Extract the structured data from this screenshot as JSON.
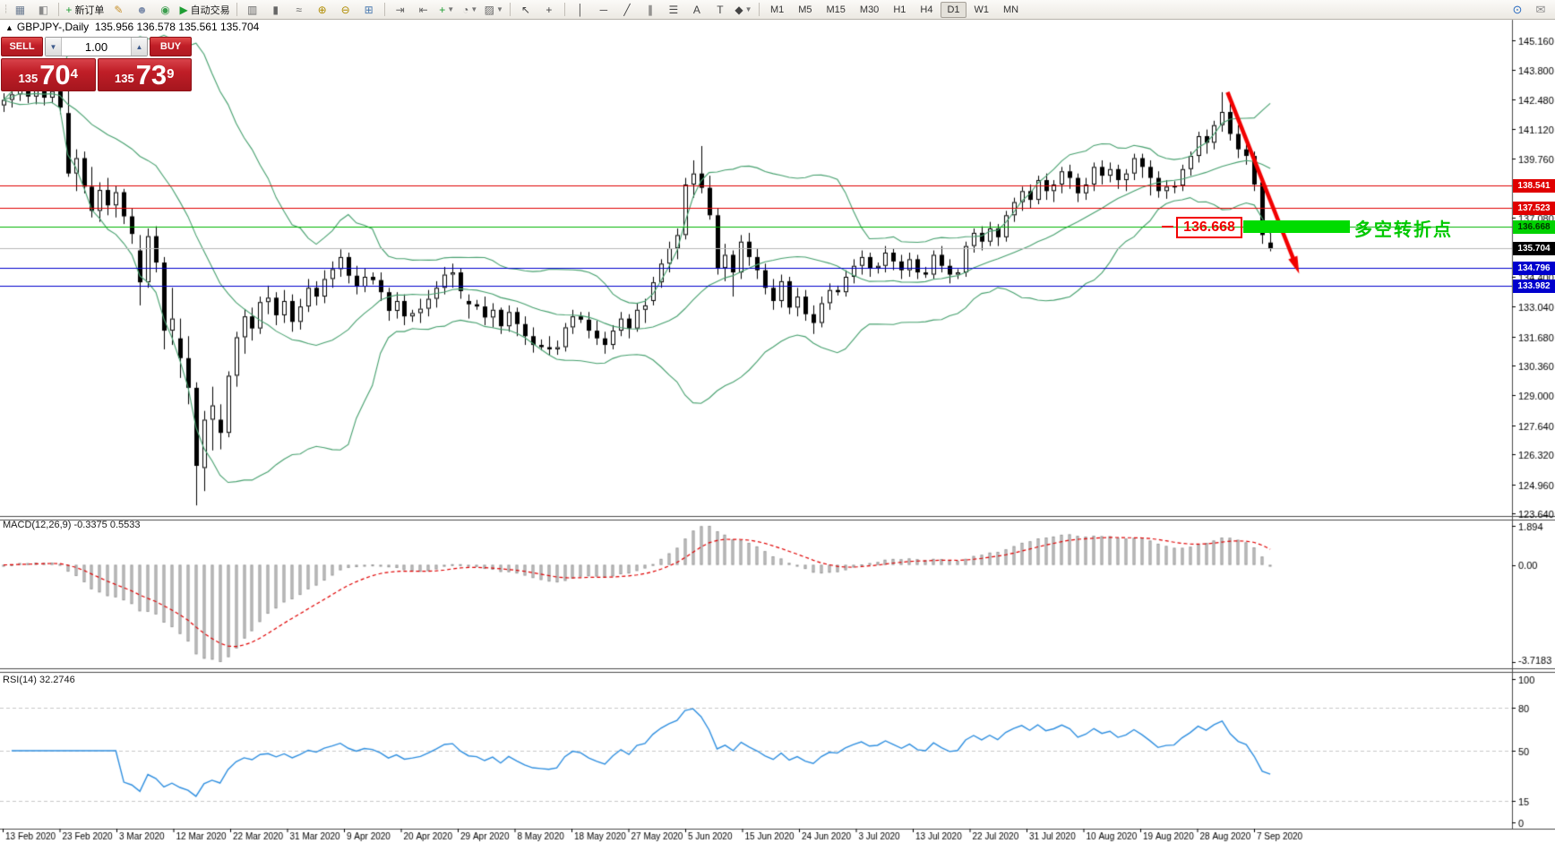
{
  "toolbar": {
    "items": [
      {
        "name": "charts-window-icon",
        "glyph": "▦",
        "color": "#6a7a90"
      },
      {
        "name": "strategy-tester-icon",
        "glyph": "◧",
        "color": "#8a8a8a"
      },
      {
        "name": "sep"
      },
      {
        "name": "new-order-icon",
        "glyph": "+",
        "color": "#1f9e34",
        "label": "新订单"
      },
      {
        "name": "crayon-icon",
        "glyph": "✎",
        "color": "#c8922e"
      },
      {
        "name": "profile-icon",
        "glyph": "☻",
        "color": "#7d8dab"
      },
      {
        "name": "signal-icon",
        "glyph": "◉",
        "color": "#3d9e4f"
      },
      {
        "name": "autotrading-icon",
        "glyph": "▶",
        "color": "#1f9e34",
        "label": "自动交易"
      },
      {
        "name": "sep"
      },
      {
        "name": "bar-chart-icon",
        "glyph": "▥",
        "color": "#666"
      },
      {
        "name": "candlestick-chart-icon",
        "glyph": "▮",
        "color": "#666"
      },
      {
        "name": "line-chart-icon",
        "glyph": "≈",
        "color": "#666"
      },
      {
        "name": "zoom-in-icon",
        "glyph": "⊕",
        "color": "#b08c00"
      },
      {
        "name": "zoom-out-icon",
        "glyph": "⊖",
        "color": "#b08c00"
      },
      {
        "name": "tile-windows-icon",
        "glyph": "⊞",
        "color": "#4a7ab0"
      },
      {
        "name": "sep"
      },
      {
        "name": "auto-scroll-icon",
        "glyph": "⇥",
        "color": "#666"
      },
      {
        "name": "chart-shift-icon",
        "glyph": "⇤",
        "color": "#666"
      },
      {
        "name": "indicators-icon",
        "glyph": "+",
        "color": "#1f9e34",
        "dropdown": true
      },
      {
        "name": "periods-icon",
        "glyph": "◔",
        "color": "#666",
        "dropdown": true
      },
      {
        "name": "templates-icon",
        "glyph": "▨",
        "color": "#666",
        "dropdown": true
      },
      {
        "name": "sep"
      },
      {
        "name": "cursor-icon",
        "glyph": "↖",
        "color": "#444"
      },
      {
        "name": "crosshair-icon",
        "glyph": "+",
        "color": "#444"
      },
      {
        "name": "sep"
      },
      {
        "name": "vertical-line-icon",
        "glyph": "│",
        "color": "#444"
      },
      {
        "name": "horizontal-line-icon",
        "glyph": "─",
        "color": "#444"
      },
      {
        "name": "trendline-icon",
        "glyph": "╱",
        "color": "#444"
      },
      {
        "name": "channel-icon",
        "glyph": "∥",
        "color": "#444"
      },
      {
        "name": "fibonacci-icon",
        "glyph": "☰",
        "color": "#444"
      },
      {
        "name": "text-icon",
        "glyph": "A",
        "color": "#444"
      },
      {
        "name": "label-icon",
        "glyph": "T",
        "color": "#444"
      },
      {
        "name": "arrows-icon",
        "glyph": "◆",
        "color": "#444",
        "dropdown": true
      },
      {
        "name": "sep"
      }
    ],
    "timeframes": [
      "M1",
      "M5",
      "M15",
      "M30",
      "H1",
      "H4",
      "D1",
      "W1",
      "MN"
    ],
    "active_timeframe": "D1",
    "right_icons": [
      {
        "name": "search-icon",
        "glyph": "⊙",
        "color": "#2a6bc0"
      },
      {
        "name": "chat-icon",
        "glyph": "✉",
        "color": "#8a8a8a"
      }
    ]
  },
  "chart_header": {
    "symbol_marker": "▲",
    "symbol": "GBPJPY-,Daily",
    "ohlc": "135.956 136.578 135.561 135.704"
  },
  "trade_panel": {
    "sell_label": "SELL",
    "buy_label": "BUY",
    "volume": "1.00",
    "spinner_up": "▲",
    "spinner_down": "▼",
    "sell_price": {
      "prefix": "135",
      "big": "70",
      "sup": "4"
    },
    "buy_price": {
      "prefix": "135",
      "big": "73",
      "sup": "9"
    }
  },
  "indicator_labels": {
    "macd": "MACD(12,26,9) -0.3375 0.5533",
    "rsi": "RSI(14) 32.2746"
  },
  "annotations": {
    "price_callout": "136.668",
    "note_text": "多空转折点",
    "note_color": "#00c800",
    "callout_color": "#f20000",
    "signal_bar_color": "#00dc00"
  },
  "chart_data": {
    "type": "candlestick",
    "symbol": "GBPJPY",
    "timeframe": "Daily",
    "last_ohlc": {
      "open": 135.956,
      "high": 136.578,
      "low": 135.561,
      "close": 135.704
    },
    "price_axis": {
      "ticks": [
        "145.160",
        "143.800",
        "142.480",
        "141.120",
        "139.760",
        "137.080",
        "134.400",
        "133.040",
        "131.680",
        "130.360",
        "129.000",
        "127.640",
        "126.320",
        "124.960",
        "123.640"
      ]
    },
    "hlines": [
      {
        "price": 138.541,
        "label": "138.541",
        "color": "#e00000",
        "tag_bg": "#e00000",
        "tag_fg": "#ffffff"
      },
      {
        "price": 137.523,
        "label": "137.523",
        "color": "#e00000",
        "tag_bg": "#e00000",
        "tag_fg": "#ffffff"
      },
      {
        "price": 136.668,
        "label": "136.668",
        "color": "#00b400",
        "tag_bg": "#00d200",
        "tag_fg": "#003300"
      },
      {
        "price": 135.704,
        "label": "135.704",
        "color": "#b8b8b8",
        "tag_bg": "#000000",
        "tag_fg": "#ffffff"
      },
      {
        "price": 134.796,
        "label": "134.796",
        "color": "#0000cd",
        "tag_bg": "#0000cd",
        "tag_fg": "#ffffff"
      },
      {
        "price": 133.982,
        "label": "133.982",
        "color": "#0000cd",
        "tag_bg": "#0000cd",
        "tag_fg": "#ffffff"
      }
    ],
    "dates": [
      "13 Feb 2020",
      "23 Feb 2020",
      "3 Mar 2020",
      "12 Mar 2020",
      "22 Mar 2020",
      "31 Mar 2020",
      "9 Apr 2020",
      "20 Apr 2020",
      "29 Apr 2020",
      "8 May 2020",
      "18 May 2020",
      "27 May 2020",
      "5 Jun 2020",
      "15 Jun 2020",
      "24 Jun 2020",
      "3 Jul 2020",
      "13 Jul 2020",
      "22 Jul 2020",
      "31 Jul 2020",
      "10 Aug 2020",
      "19 Aug 2020",
      "28 Aug 2020",
      "7 Sep 2020"
    ],
    "bollinger": {
      "period": 20,
      "deviation": 2,
      "color": "#46a06e"
    },
    "macd": {
      "params": "12,26,9",
      "value": -0.3375,
      "signal": 0.5533,
      "axis": [
        "1.894",
        "0.00",
        "-3.7183"
      ],
      "hist_color": "#d2d2d2",
      "hist_border": "#9a9a9a",
      "signal_color": "#e00000"
    },
    "rsi": {
      "params": "14",
      "value": 32.2746,
      "levels": [
        80,
        50,
        15
      ],
      "axis": [
        "100",
        "80",
        "50",
        "15",
        "0"
      ],
      "line_color": "#2f8fe0"
    },
    "trend_arrow": {
      "from_price": 142.8,
      "to_price": 135.0,
      "color": "#f20000"
    },
    "candles": [
      [
        142.2,
        142.75,
        141.9,
        142.45
      ],
      [
        142.45,
        143.0,
        142.1,
        142.7
      ],
      [
        142.7,
        143.3,
        142.4,
        143.05
      ],
      [
        143.05,
        143.25,
        142.3,
        142.6
      ],
      [
        142.6,
        143.15,
        142.25,
        142.9
      ],
      [
        142.9,
        143.2,
        142.2,
        142.55
      ],
      [
        142.55,
        143.4,
        142.3,
        142.85
      ],
      [
        142.85,
        143.1,
        141.8,
        142.1
      ],
      [
        141.85,
        143.25,
        138.95,
        139.1
      ],
      [
        139.1,
        140.2,
        138.3,
        139.8
      ],
      [
        139.8,
        140.1,
        138.2,
        138.5
      ],
      [
        138.5,
        139.4,
        137.1,
        137.4
      ],
      [
        137.4,
        138.7,
        136.9,
        138.35
      ],
      [
        138.35,
        138.9,
        137.2,
        137.65
      ],
      [
        137.65,
        138.55,
        137.1,
        138.25
      ],
      [
        138.25,
        138.4,
        136.8,
        137.15
      ],
      [
        137.15,
        137.5,
        135.9,
        136.35
      ],
      [
        135.6,
        136.3,
        133.1,
        134.15
      ],
      [
        134.15,
        136.6,
        133.9,
        136.25
      ],
      [
        136.25,
        136.7,
        134.6,
        135.05
      ],
      [
        135.05,
        135.3,
        131.1,
        131.95
      ],
      [
        131.95,
        133.9,
        131.3,
        132.5
      ],
      [
        131.6,
        132.5,
        129.8,
        130.7
      ],
      [
        130.7,
        131.7,
        128.6,
        129.35
      ],
      [
        129.35,
        129.6,
        124.0,
        125.8
      ],
      [
        125.7,
        128.3,
        124.65,
        127.9
      ],
      [
        127.9,
        129.4,
        126.5,
        128.55
      ],
      [
        127.9,
        128.6,
        126.55,
        127.3
      ],
      [
        127.3,
        130.1,
        127.1,
        129.9
      ],
      [
        129.9,
        131.9,
        129.4,
        131.65
      ],
      [
        131.65,
        132.9,
        130.9,
        132.6
      ],
      [
        132.6,
        133.0,
        131.5,
        132.05
      ],
      [
        132.05,
        133.5,
        131.8,
        133.25
      ],
      [
        133.25,
        134.0,
        132.7,
        133.45
      ],
      [
        133.45,
        133.7,
        132.2,
        132.65
      ],
      [
        132.65,
        133.8,
        132.3,
        133.3
      ],
      [
        133.3,
        133.6,
        131.9,
        132.35
      ],
      [
        132.35,
        133.4,
        132.0,
        133.05
      ],
      [
        133.05,
        134.3,
        132.8,
        133.9
      ],
      [
        133.9,
        134.2,
        133.1,
        133.5
      ],
      [
        133.5,
        134.7,
        133.2,
        134.3
      ],
      [
        134.3,
        135.1,
        133.9,
        134.75
      ],
      [
        134.75,
        135.65,
        134.4,
        135.3
      ],
      [
        135.3,
        135.5,
        134.1,
        134.45
      ],
      [
        134.45,
        134.9,
        133.6,
        133.95
      ],
      [
        133.95,
        134.8,
        133.7,
        134.4
      ],
      [
        134.4,
        134.6,
        134.05,
        134.25
      ],
      [
        134.25,
        134.6,
        133.3,
        133.7
      ],
      [
        133.7,
        133.9,
        132.4,
        132.85
      ],
      [
        132.85,
        133.7,
        132.5,
        133.3
      ],
      [
        133.3,
        133.6,
        132.2,
        132.6
      ],
      [
        132.6,
        132.9,
        132.35,
        132.75
      ],
      [
        132.75,
        133.4,
        132.3,
        132.95
      ],
      [
        132.95,
        133.8,
        132.6,
        133.4
      ],
      [
        133.4,
        134.2,
        133.0,
        133.9
      ],
      [
        133.9,
        134.85,
        133.6,
        134.5
      ],
      [
        134.5,
        135.0,
        133.9,
        134.6
      ],
      [
        134.6,
        134.8,
        133.4,
        133.75
      ],
      [
        133.3,
        133.6,
        132.5,
        133.15
      ],
      [
        133.15,
        133.35,
        132.9,
        133.05
      ],
      [
        133.05,
        133.5,
        132.2,
        132.55
      ],
      [
        132.55,
        133.2,
        132.1,
        132.9
      ],
      [
        132.9,
        133.0,
        131.8,
        132.15
      ],
      [
        132.15,
        133.1,
        131.9,
        132.8
      ],
      [
        132.8,
        133.0,
        131.7,
        132.25
      ],
      [
        132.25,
        132.6,
        131.3,
        131.7
      ],
      [
        131.7,
        132.1,
        130.95,
        131.3
      ],
      [
        131.3,
        131.55,
        131.05,
        131.2
      ],
      [
        131.2,
        131.7,
        130.85,
        131.1
      ],
      [
        131.1,
        131.5,
        130.85,
        131.2
      ],
      [
        131.2,
        132.3,
        131.0,
        132.1
      ],
      [
        132.1,
        132.9,
        131.8,
        132.6
      ],
      [
        132.6,
        132.8,
        132.3,
        132.45
      ],
      [
        132.45,
        132.8,
        131.6,
        131.95
      ],
      [
        131.95,
        132.4,
        131.3,
        131.6
      ],
      [
        131.6,
        131.9,
        130.9,
        131.3
      ],
      [
        131.3,
        132.2,
        131.1,
        131.95
      ],
      [
        131.95,
        132.8,
        131.7,
        132.5
      ],
      [
        132.5,
        132.7,
        131.6,
        132.05
      ],
      [
        132.05,
        133.2,
        131.9,
        132.9
      ],
      [
        132.9,
        133.4,
        132.3,
        133.1
      ],
      [
        133.3,
        134.4,
        133.1,
        134.15
      ],
      [
        134.15,
        135.2,
        133.9,
        135.0
      ],
      [
        135.0,
        136.0,
        134.6,
        135.7
      ],
      [
        135.7,
        136.6,
        135.2,
        136.3
      ],
      [
        136.3,
        138.9,
        136.1,
        138.6
      ],
      [
        138.6,
        139.7,
        138.0,
        139.1
      ],
      [
        139.1,
        140.35,
        138.2,
        138.45
      ],
      [
        138.45,
        139.0,
        137.0,
        137.2
      ],
      [
        137.2,
        137.5,
        134.5,
        134.8
      ],
      [
        134.8,
        135.9,
        134.2,
        135.4
      ],
      [
        135.4,
        135.6,
        133.5,
        134.6
      ],
      [
        134.6,
        136.3,
        134.3,
        136.0
      ],
      [
        136.0,
        136.4,
        134.9,
        135.3
      ],
      [
        135.3,
        135.7,
        134.3,
        134.7
      ],
      [
        134.7,
        135.0,
        133.6,
        133.9
      ],
      [
        133.9,
        134.3,
        132.9,
        133.3
      ],
      [
        133.3,
        134.5,
        133.0,
        134.2
      ],
      [
        134.2,
        134.4,
        132.7,
        133.0
      ],
      [
        133.0,
        133.9,
        132.6,
        133.5
      ],
      [
        133.5,
        133.8,
        132.4,
        132.7
      ],
      [
        132.7,
        133.1,
        131.8,
        132.3
      ],
      [
        132.3,
        133.5,
        132.1,
        133.2
      ],
      [
        133.2,
        134.1,
        132.9,
        133.8
      ],
      [
        133.8,
        134.0,
        133.55,
        133.7
      ],
      [
        133.7,
        134.7,
        133.5,
        134.4
      ],
      [
        134.4,
        135.2,
        134.1,
        134.9
      ],
      [
        134.9,
        135.6,
        134.5,
        135.3
      ],
      [
        135.3,
        135.5,
        134.4,
        134.8
      ],
      [
        134.8,
        135.05,
        134.55,
        134.9
      ],
      [
        134.9,
        135.8,
        134.6,
        135.5
      ],
      [
        135.5,
        135.7,
        134.7,
        135.1
      ],
      [
        135.1,
        135.4,
        134.3,
        134.7
      ],
      [
        134.7,
        135.5,
        134.4,
        135.2
      ],
      [
        135.2,
        135.4,
        134.3,
        134.6
      ],
      [
        134.6,
        134.85,
        134.35,
        134.5
      ],
      [
        134.5,
        135.6,
        134.3,
        135.4
      ],
      [
        135.4,
        135.8,
        134.6,
        134.9
      ],
      [
        134.9,
        135.2,
        134.1,
        134.5
      ],
      [
        134.5,
        134.75,
        134.3,
        134.6
      ],
      [
        134.6,
        136.0,
        134.4,
        135.8
      ],
      [
        135.8,
        136.6,
        135.5,
        136.4
      ],
      [
        136.4,
        136.7,
        135.6,
        136.0
      ],
      [
        136.0,
        136.9,
        135.8,
        136.6
      ],
      [
        136.6,
        136.8,
        135.8,
        136.2
      ],
      [
        136.2,
        137.4,
        136.0,
        137.2
      ],
      [
        137.2,
        138.0,
        136.9,
        137.8
      ],
      [
        137.8,
        138.5,
        137.4,
        138.3
      ],
      [
        138.3,
        138.6,
        137.5,
        137.9
      ],
      [
        137.9,
        139.0,
        137.7,
        138.8
      ],
      [
        138.8,
        139.1,
        137.9,
        138.3
      ],
      [
        138.3,
        138.8,
        137.8,
        138.6
      ],
      [
        138.6,
        139.4,
        138.2,
        139.2
      ],
      [
        139.2,
        139.5,
        138.4,
        138.9
      ],
      [
        138.9,
        139.1,
        137.8,
        138.2
      ],
      [
        138.2,
        138.9,
        137.9,
        138.6
      ],
      [
        138.6,
        139.6,
        138.3,
        139.4
      ],
      [
        139.4,
        139.7,
        138.6,
        139.0
      ],
      [
        139.0,
        139.6,
        138.7,
        139.3
      ],
      [
        139.3,
        139.5,
        138.4,
        138.8
      ],
      [
        138.8,
        139.3,
        138.3,
        139.1
      ],
      [
        139.1,
        140.0,
        138.8,
        139.8
      ],
      [
        139.8,
        140.0,
        138.9,
        139.4
      ],
      [
        139.4,
        139.7,
        138.1,
        138.9
      ],
      [
        138.9,
        139.2,
        138.0,
        138.3
      ],
      [
        138.3,
        138.8,
        137.95,
        138.5
      ],
      [
        138.5,
        138.75,
        138.2,
        138.55
      ],
      [
        138.55,
        139.5,
        138.3,
        139.3
      ],
      [
        139.3,
        140.1,
        139.0,
        139.9
      ],
      [
        139.9,
        141.0,
        139.6,
        140.8
      ],
      [
        140.8,
        141.1,
        140.0,
        140.5
      ],
      [
        140.5,
        141.5,
        140.2,
        141.3
      ],
      [
        141.3,
        142.8,
        141.0,
        141.9
      ],
      [
        141.9,
        142.4,
        140.6,
        140.9
      ],
      [
        140.9,
        141.3,
        139.8,
        140.2
      ],
      [
        140.2,
        140.7,
        139.5,
        139.9
      ],
      [
        139.9,
        140.1,
        138.3,
        138.6
      ],
      [
        138.7,
        138.9,
        135.9,
        136.3
      ],
      [
        135.96,
        136.58,
        135.56,
        135.7
      ]
    ]
  }
}
